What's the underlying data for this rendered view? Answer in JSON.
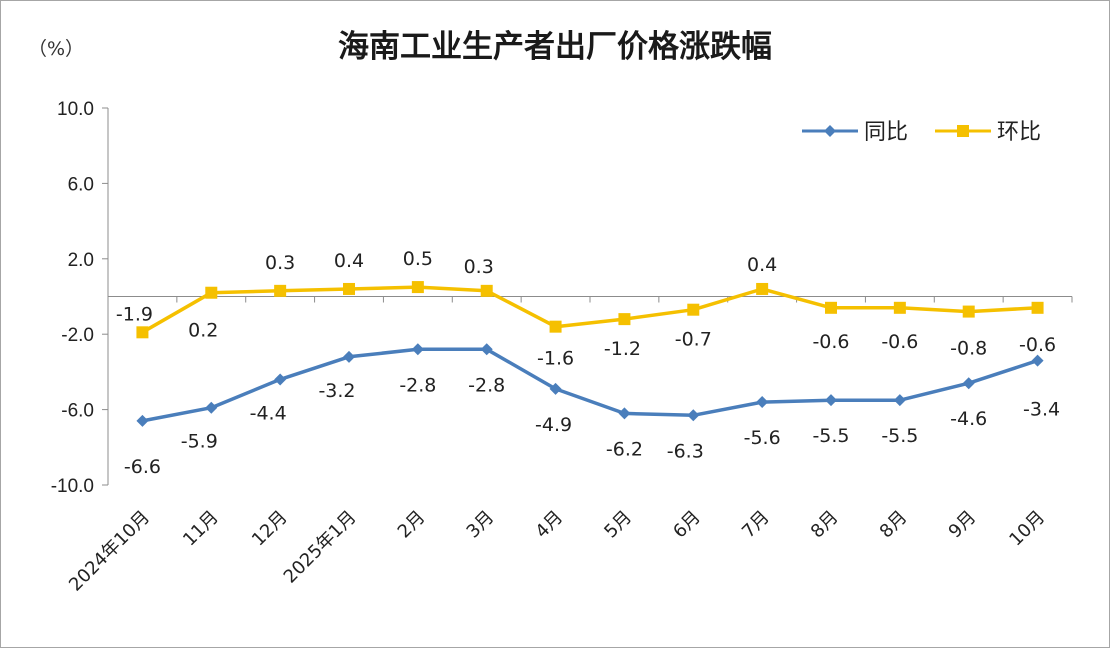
{
  "chart_data": {
    "type": "line",
    "title": "海南工业生产者出厂价格涨跌幅",
    "unit_label": "（%）",
    "ylim": [
      -10.0,
      10.0
    ],
    "yticks": [
      "10.0",
      "6.0",
      "2.0",
      "-2.0",
      "-6.0",
      "-10.0"
    ],
    "ytick_values": [
      10,
      6,
      2,
      -2,
      -6,
      -10
    ],
    "categories": [
      "2024年10月",
      "11月",
      "12月",
      "2025年1月",
      "2月",
      "3月",
      "4月",
      "5月",
      "6月",
      "7月",
      "8月",
      "8月",
      "9月",
      "10月"
    ],
    "series": [
      {
        "name": "同比",
        "color": "#4a7ebb",
        "marker": "diamond",
        "values": [
          -6.6,
          -5.9,
          -4.4,
          -3.2,
          -2.8,
          -2.8,
          -4.9,
          -6.2,
          -6.3,
          -5.6,
          -5.5,
          -5.5,
          -4.6,
          -3.4
        ],
        "labels": [
          "-6.6",
          "-5.9",
          "-4.4",
          "-3.2",
          "-2.8",
          "-2.8",
          "-4.9",
          "-6.2",
          "-6.3",
          "-5.6",
          "-5.5",
          "-5.5",
          "-4.6",
          "-3.4"
        ]
      },
      {
        "name": "环比",
        "color": "#f5c000",
        "marker": "square",
        "values": [
          -1.9,
          0.2,
          0.3,
          0.4,
          0.5,
          0.3,
          -1.6,
          -1.2,
          -0.7,
          0.4,
          -0.6,
          -0.6,
          -0.8,
          -0.6
        ],
        "labels": [
          "-1.9",
          "0.2",
          "0.3",
          "0.4",
          "0.5",
          "0.3",
          "-1.6",
          "-1.2",
          "-0.7",
          "0.4",
          "-0.6",
          "-0.6",
          "-0.8",
          "-0.6"
        ]
      }
    ],
    "legend_position": "top-right"
  }
}
